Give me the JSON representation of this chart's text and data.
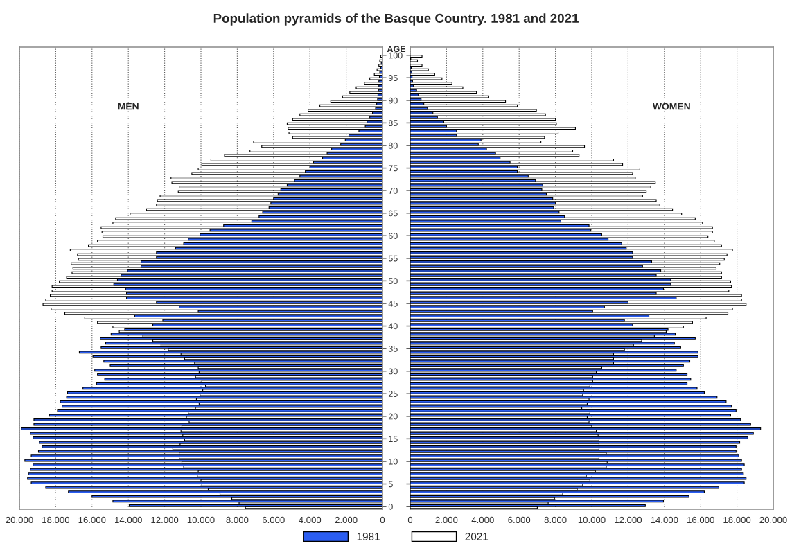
{
  "chart_data": [
    {
      "type": "bar",
      "orientation": "horizontal",
      "title": "Population pyramids of the Basque Country. 1981 and 2021",
      "ylabel": "AGE",
      "annotations": [
        "MEN"
      ],
      "categories": [
        "100",
        null,
        null,
        null,
        null,
        "95",
        null,
        null,
        null,
        null,
        "90",
        null,
        null,
        null,
        null,
        "85",
        null,
        null,
        null,
        null,
        "80",
        null,
        null,
        null,
        null,
        "75",
        null,
        null,
        null,
        null,
        "70",
        null,
        null,
        null,
        null,
        "65",
        null,
        null,
        null,
        null,
        "60",
        null,
        null,
        null,
        null,
        "55",
        null,
        null,
        null,
        null,
        "50",
        null,
        null,
        null,
        null,
        "45",
        null,
        null,
        null,
        null,
        "40",
        null,
        null,
        null,
        null,
        "35",
        null,
        null,
        null,
        null,
        "30",
        null,
        null,
        null,
        null,
        "25",
        null,
        null,
        null,
        null,
        "20",
        null,
        null,
        null,
        null,
        "15",
        null,
        null,
        null,
        null,
        "10",
        null,
        null,
        null,
        null,
        "5",
        null,
        null,
        null,
        null,
        "0"
      ],
      "xlim": [
        20000,
        0
      ],
      "xticks": [
        {
          "value": 20000,
          "label": "20.000"
        },
        {
          "value": 18000,
          "label": "18.000"
        },
        {
          "value": 16000,
          "label": "16.000"
        },
        {
          "value": 14000,
          "label": "14.000"
        },
        {
          "value": 12000,
          "label": "12.000"
        },
        {
          "value": 10000,
          "label": "10.000"
        },
        {
          "value": 8000,
          "label": "8.000"
        },
        {
          "value": 6000,
          "label": "6.000"
        },
        {
          "value": 4000,
          "label": "4.000"
        },
        {
          "value": 2000,
          "label": "2.000"
        },
        0
      ],
      "grid": "x",
      "legend": "bottom",
      "series": [
        {
          "name": "1981",
          "color": "#2b5df0",
          "values": [
            null,
            null,
            70,
            100,
            150,
            170,
            200,
            200,
            220,
            250,
            270,
            320,
            380,
            550,
            700,
            850,
            950,
            1300,
            1850,
            2050,
            2300,
            2800,
            3050,
            3300,
            3800,
            4000,
            4250,
            4550,
            4850,
            5250,
            5600,
            5750,
            6000,
            6150,
            6250,
            6600,
            6800,
            7200,
            8750,
            9500,
            10050,
            10700,
            10950,
            11400,
            12450,
            12450,
            13300,
            13300,
            14050,
            14400,
            14600,
            14800,
            14150,
            14100,
            14100,
            12450,
            11200,
            10150,
            13650,
            12100,
            12650,
            14200,
            14950,
            15550,
            15250,
            15500,
            16700,
            15950,
            15350,
            15000,
            15850,
            15700,
            15300,
            15750,
            16500,
            17350,
            17400,
            17750,
            17650,
            17900,
            18350,
            19200,
            19200,
            19900,
            19400,
            19250,
            18900,
            18750,
            18950,
            19350,
            19700,
            19250,
            19400,
            19500,
            19550,
            19350,
            18550,
            17300,
            16000,
            14850,
            13950
          ]
        },
        {
          "name": "2021",
          "color": "#ffffff",
          "values": [
            100,
            150,
            200,
            300,
            450,
            700,
            1000,
            1450,
            1800,
            2200,
            2850,
            3450,
            4100,
            4550,
            4950,
            5250,
            5200,
            5150,
            4950,
            7100,
            6650,
            7300,
            8700,
            9450,
            9950,
            10150,
            10500,
            11650,
            11600,
            11200,
            11250,
            12250,
            12400,
            12450,
            13000,
            13900,
            14700,
            14850,
            15500,
            15450,
            15400,
            15700,
            16200,
            17200,
            16800,
            16750,
            17150,
            17050,
            17100,
            17400,
            17800,
            18200,
            18200,
            18300,
            18550,
            18700,
            18250,
            17500,
            16400,
            15700,
            14850,
            14500,
            13200,
            12650,
            12200,
            11800,
            11100,
            10900,
            10350,
            10150,
            10100,
            10300,
            9950,
            9750,
            9900,
            10050,
            10250,
            10100,
            10300,
            10700,
            10800,
            10650,
            11050,
            11100,
            11000,
            10900,
            11150,
            11550,
            11200,
            11200,
            11050,
            10950,
            10150,
            10200,
            10000,
            9950,
            9600,
            8950,
            8300,
            7900,
            7550
          ]
        }
      ]
    },
    {
      "type": "bar",
      "orientation": "horizontal",
      "annotations": [
        "WOMEN"
      ],
      "tick_labels": "x",
      "categories": [
        "100",
        null,
        null,
        null,
        null,
        "95",
        null,
        null,
        null,
        null,
        "90",
        null,
        null,
        null,
        null,
        "85",
        null,
        null,
        null,
        null,
        "80",
        null,
        null,
        null,
        null,
        "75",
        null,
        null,
        null,
        null,
        "70",
        null,
        null,
        null,
        null,
        "65",
        null,
        null,
        null,
        null,
        "60",
        null,
        null,
        null,
        null,
        "55",
        null,
        null,
        null,
        null,
        "50",
        null,
        null,
        null,
        null,
        "45",
        null,
        null,
        null,
        null,
        "40",
        null,
        null,
        null,
        null,
        "35",
        null,
        null,
        null,
        null,
        "30",
        null,
        null,
        null,
        null,
        "25",
        null,
        null,
        null,
        null,
        "20",
        null,
        null,
        null,
        null,
        "15",
        null,
        null,
        null,
        null,
        "10",
        null,
        null,
        null,
        null,
        "5",
        null,
        null,
        null,
        null,
        "0"
      ],
      "xlim": [
        0,
        20000
      ],
      "xticks": [
        0,
        {
          "value": 2000,
          "label": "2.000"
        },
        {
          "value": 4000,
          "label": "4.000"
        },
        {
          "value": 6000,
          "label": "6.000"
        },
        {
          "value": 8000,
          "label": "8.000"
        },
        {
          "value": 10000,
          "label": "10.000"
        },
        {
          "value": 12000,
          "label": "12.000"
        },
        {
          "value": 14000,
          "label": "14.000"
        },
        {
          "value": 16000,
          "label": "16.000"
        },
        {
          "value": 18000,
          "label": "18.000"
        },
        {
          "value": 20000,
          "label": "20.000"
        }
      ],
      "grid": "x",
      "series": [
        {
          "name": "1981",
          "color": "#2b5df0",
          "values": [
            null,
            30,
            null,
            60,
            80,
            100,
            130,
            180,
            350,
            450,
            600,
            750,
            950,
            1250,
            1500,
            1850,
            2000,
            2550,
            2550,
            3900,
            3750,
            4200,
            4700,
            4950,
            5500,
            5900,
            5900,
            6500,
            6900,
            7300,
            7250,
            7500,
            7850,
            8000,
            7900,
            8200,
            8500,
            8300,
            9850,
            9950,
            10550,
            10900,
            11650,
            11900,
            12250,
            12250,
            13300,
            12800,
            13800,
            13550,
            14350,
            14350,
            13950,
            13550,
            14650,
            12000,
            10700,
            10050,
            13150,
            11800,
            12250,
            14200,
            14600,
            15700,
            14550,
            14900,
            15850,
            15850,
            15400,
            15050,
            14650,
            15250,
            15450,
            15250,
            15800,
            16200,
            16900,
            17400,
            17700,
            17950,
            17650,
            18200,
            18750,
            19300,
            18900,
            18600,
            18150,
            17950,
            17950,
            18100,
            18250,
            18400,
            18250,
            18350,
            18500,
            18400,
            17000,
            16200,
            15350,
            13950,
            12950
          ]
        },
        {
          "name": "2021",
          "color": "#ffffff",
          "values": [
            650,
            400,
            650,
            1000,
            1350,
            1750,
            2300,
            2900,
            3650,
            4300,
            5250,
            5900,
            6950,
            7450,
            8000,
            8050,
            9100,
            8150,
            7400,
            7200,
            9600,
            8950,
            9300,
            11200,
            11700,
            12650,
            12250,
            12400,
            13500,
            13250,
            13000,
            12800,
            13550,
            13750,
            14450,
            14950,
            15700,
            16100,
            16650,
            16650,
            16400,
            16750,
            17150,
            17750,
            17450,
            17300,
            17050,
            16850,
            17150,
            17150,
            17650,
            17700,
            17550,
            18250,
            18250,
            18500,
            17750,
            17500,
            16300,
            15550,
            15050,
            14100,
            13450,
            12750,
            12300,
            11800,
            11200,
            11200,
            11200,
            10550,
            10250,
            10050,
            10050,
            9900,
            9550,
            9500,
            9850,
            9750,
            9450,
            9900,
            9750,
            9850,
            10000,
            10250,
            10350,
            10400,
            10400,
            10400,
            10800,
            10400,
            10850,
            10800,
            10200,
            9700,
            9900,
            9500,
            9200,
            8400,
            7950,
            7600,
            7000
          ]
        }
      ]
    }
  ]
}
